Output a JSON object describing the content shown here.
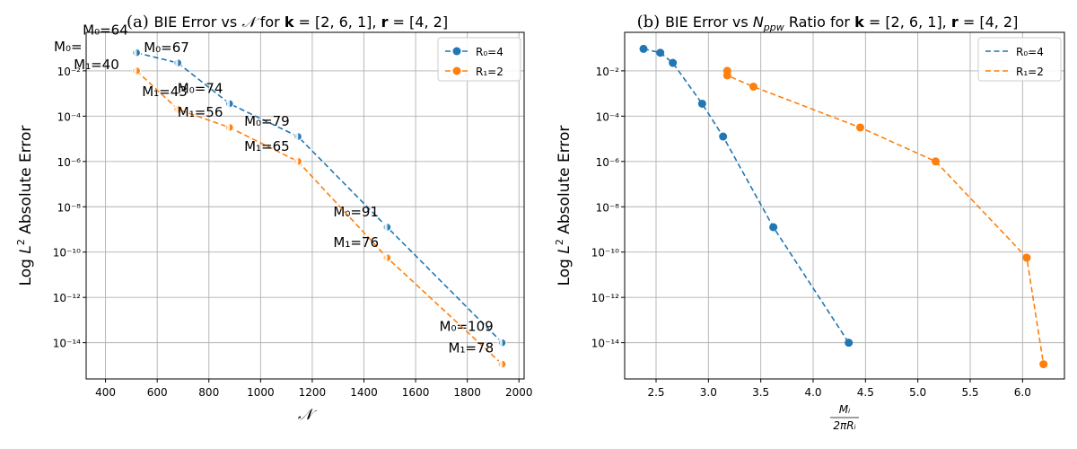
{
  "chart_data": [
    {
      "type": "line",
      "title_prefix": "(a)",
      "title": "BIE Error vs 𝒩 for k = [2, 6, 1], r = [4, 2]",
      "title_parts": [
        "BIE Error vs ",
        "𝒩",
        " for ",
        "k",
        " = [2, 6, 1], ",
        "r",
        " = [4, 2]"
      ],
      "xlabel": "𝒩",
      "ylabel": "Log L² Absolute Error",
      "yscale": "log",
      "xlim": [
        325,
        2020
      ],
      "ylim_exp": [
        -15.6,
        -0.3
      ],
      "xticks": [
        400,
        600,
        800,
        1000,
        1200,
        1400,
        1600,
        1800,
        2000
      ],
      "xtick_labels": [
        "400",
        "600",
        "800",
        "1000",
        "1200",
        "1400",
        "1600",
        "1800",
        "2000"
      ],
      "yticks_exp": [
        -14,
        -12,
        -10,
        -8,
        -6,
        -4,
        -2
      ],
      "ytick_labels": [
        "10⁻¹⁴",
        "10⁻¹²",
        "10⁻¹⁰",
        "10⁻⁸",
        "10⁻⁶",
        "10⁻⁴",
        "10⁻²"
      ],
      "grid": true,
      "legend": "top-right",
      "marker_style": "faded",
      "series": [
        {
          "name": "R₀=4",
          "color": "#1f77b4",
          "points": [
            {
              "x": 520,
              "y_exp": -1.2,
              "label": "M₀=64"
            },
            {
              "x": 680,
              "y_exp": -1.65,
              "label": "M₀=67"
            },
            {
              "x": 880,
              "y_exp": -3.45,
              "label": "M₀=74"
            },
            {
              "x": 1145,
              "y_exp": -4.9,
              "label": "M₀=79"
            },
            {
              "x": 1490,
              "y_exp": -8.9,
              "label": "M₀=91"
            },
            {
              "x": 1935,
              "y_exp": -14.0,
              "label": "M₀=109"
            }
          ]
        },
        {
          "name": "R₁=2",
          "color": "#ff7f0e",
          "points": [
            {
              "x": 520,
              "y_exp": -2.0,
              "label": "M₁=40"
            },
            {
              "x": 680,
              "y_exp": -3.7,
              "label": "M₁=43"
            },
            {
              "x": 880,
              "y_exp": -4.5,
              "label": "M₁=56"
            },
            {
              "x": 1145,
              "y_exp": -6.0,
              "label": "M₁=65"
            },
            {
              "x": 1490,
              "y_exp": -10.25,
              "label": "M₁=76"
            },
            {
              "x": 1935,
              "y_exp": -14.95,
              "label": "M₁=78"
            }
          ]
        }
      ]
    },
    {
      "type": "line",
      "title_prefix": "(b)",
      "title": "BIE Error vs N_ppw Ratio for k = [2, 6, 1], r = [4, 2]",
      "title_parts": [
        "BIE Error vs ",
        "N",
        "ppw",
        " Ratio for ",
        "k",
        " = [2, 6, 1], ",
        "r",
        " = [4, 2]"
      ],
      "xlabel": "Mᵢ / 2πRᵢ",
      "xlabel_parts": [
        "Mᵢ",
        "2πRᵢ"
      ],
      "ylabel": "Log L² Absolute Error",
      "yscale": "log",
      "xlim": [
        2.2,
        6.4
      ],
      "ylim_exp": [
        -15.6,
        -0.3
      ],
      "xticks": [
        2.5,
        3.0,
        3.5,
        4.0,
        4.5,
        5.0,
        5.5,
        6.0
      ],
      "xtick_labels": [
        "2.5",
        "3.0",
        "3.5",
        "4.0",
        "4.5",
        "5.0",
        "5.5",
        "6.0"
      ],
      "yticks_exp": [
        -14,
        -12,
        -10,
        -8,
        -6,
        -4,
        -2
      ],
      "ytick_labels": [
        "10⁻¹⁴",
        "10⁻¹²",
        "10⁻¹⁰",
        "10⁻⁸",
        "10⁻⁶",
        "10⁻⁴",
        "10⁻²"
      ],
      "grid": true,
      "legend": "top-right",
      "marker_style": "solid",
      "series": [
        {
          "name": "R₀=4",
          "color": "#1f77b4",
          "points": [
            {
              "x": 2.38,
              "y_exp": -1.03
            },
            {
              "x": 2.54,
              "y_exp": -1.2
            },
            {
              "x": 2.66,
              "y_exp": -1.65
            },
            {
              "x": 2.94,
              "y_exp": -3.45
            },
            {
              "x": 3.14,
              "y_exp": -4.9
            },
            {
              "x": 3.62,
              "y_exp": -8.9
            },
            {
              "x": 4.34,
              "y_exp": -14.0
            }
          ]
        },
        {
          "name": "R₁=2",
          "color": "#ff7f0e",
          "points": [
            {
              "x": 3.18,
              "y_exp": -2.0
            },
            {
              "x": 3.18,
              "y_exp": -2.2
            },
            {
              "x": 3.43,
              "y_exp": -2.7
            },
            {
              "x": 4.45,
              "y_exp": -4.5
            },
            {
              "x": 5.17,
              "y_exp": -6.0
            },
            {
              "x": 6.04,
              "y_exp": -10.25
            },
            {
              "x": 6.2,
              "y_exp": -14.95
            }
          ]
        }
      ]
    }
  ]
}
